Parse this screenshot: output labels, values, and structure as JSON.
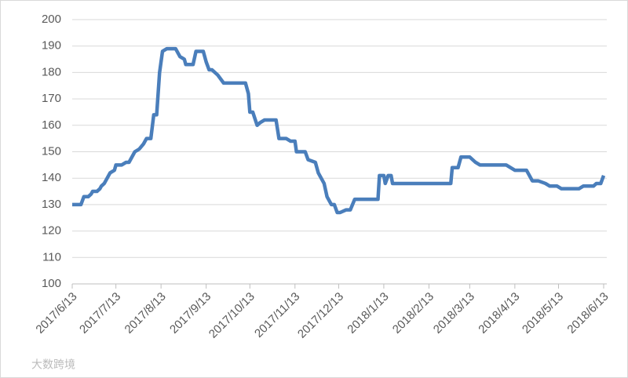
{
  "chart_data": {
    "type": "line",
    "x": [
      "2017/6/13",
      "2017/6/19",
      "2017/6/21",
      "2017/6/24",
      "2017/6/26",
      "2017/6/27",
      "2017/6/30",
      "2017/7/2",
      "2017/7/3",
      "2017/7/5",
      "2017/7/6",
      "2017/7/7",
      "2017/7/9",
      "2017/7/12",
      "2017/7/13",
      "2017/7/17",
      "2017/7/20",
      "2017/7/22",
      "2017/7/24",
      "2017/7/26",
      "2017/7/29",
      "2017/8/1",
      "2017/8/3",
      "2017/8/6",
      "2017/8/8",
      "2017/8/10",
      "2017/8/12",
      "2017/8/14",
      "2017/8/17",
      "2017/8/23",
      "2017/8/26",
      "2017/8/29",
      "2017/8/30",
      "2017/9/4",
      "2017/9/6",
      "2017/9/11",
      "2017/9/13",
      "2017/9/15",
      "2017/9/17",
      "2017/9/21",
      "2017/9/25",
      "2017/10/10",
      "2017/10/12",
      "2017/10/13",
      "2017/10/15",
      "2017/10/18",
      "2017/10/20",
      "2017/10/23",
      "2017/10/31",
      "2017/11/2",
      "2017/11/7",
      "2017/11/10",
      "2017/11/13",
      "2017/11/14",
      "2017/11/20",
      "2017/11/22",
      "2017/11/27",
      "2017/11/29",
      "2017/12/1",
      "2017/12/3",
      "2017/12/5",
      "2017/12/8",
      "2017/12/10",
      "2017/12/12",
      "2017/12/14",
      "2017/12/18",
      "2017/12/21",
      "2017/12/24",
      "2018/1/9",
      "2018/1/10",
      "2018/1/13",
      "2018/1/14",
      "2018/1/16",
      "2018/1/18",
      "2018/1/19",
      "2018/2/28",
      "2018/3/1",
      "2018/3/5",
      "2018/3/7",
      "2018/3/13",
      "2018/3/17",
      "2018/3/20",
      "2018/4/7",
      "2018/4/10",
      "2018/4/13",
      "2018/4/21",
      "2018/4/23",
      "2018/4/25",
      "2018/4/29",
      "2018/5/4",
      "2018/5/7",
      "2018/5/12",
      "2018/5/15",
      "2018/5/27",
      "2018/5/30",
      "2018/6/6",
      "2018/6/8",
      "2018/6/11",
      "2018/6/13"
    ],
    "series": [
      {
        "color": "#4a7ebb",
        "values": [
          130,
          130,
          133,
          133,
          134,
          135,
          135,
          136,
          137,
          138,
          139,
          140,
          142,
          143,
          145,
          145,
          146,
          146,
          148,
          150,
          151,
          153,
          155,
          155,
          164,
          164,
          180,
          188,
          189,
          189,
          186,
          185,
          183,
          183,
          188,
          188,
          184,
          181,
          181,
          179,
          176,
          176,
          172,
          165,
          165,
          160,
          161,
          162,
          162,
          155,
          155,
          154,
          154,
          150,
          150,
          147,
          146,
          142,
          140,
          138,
          133,
          130,
          130,
          127,
          127,
          128,
          128,
          132,
          132,
          141,
          141,
          138,
          141,
          141,
          138,
          138,
          144,
          144,
          148,
          148,
          146,
          145,
          145,
          144,
          143,
          143,
          141,
          139,
          139,
          138,
          137,
          137,
          136,
          136,
          137,
          137,
          138,
          138,
          141
        ]
      }
    ],
    "xlim": [
      "2017/6/13",
      "2018/6/13"
    ],
    "xticks": [
      "2017/6/13",
      "2017/7/13",
      "2017/8/13",
      "2017/9/13",
      "2017/10/13",
      "2017/11/13",
      "2017/12/13",
      "2018/1/13",
      "2018/2/13",
      "2018/3/13",
      "2018/4/13",
      "2018/5/13",
      "2018/6/13"
    ],
    "ylim": [
      100,
      200
    ],
    "yticks": [
      100,
      110,
      120,
      130,
      140,
      150,
      160,
      170,
      180,
      190,
      200
    ],
    "grid": true,
    "watermark": "大数跨境"
  }
}
